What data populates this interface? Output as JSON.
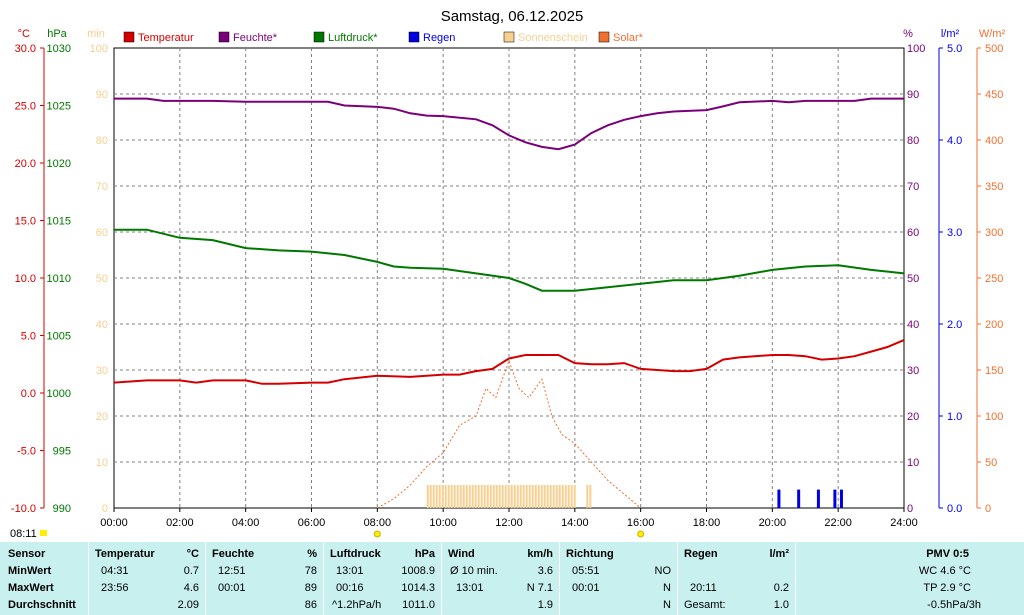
{
  "chart_data": {
    "type": "line",
    "title": "Samstag, 06.12.2025",
    "x_ticks": [
      "00:00",
      "02:00",
      "04:00",
      "06:00",
      "08:00",
      "10:00",
      "12:00",
      "14:00",
      "16:00",
      "18:00",
      "20:00",
      "22:00",
      "24:00"
    ],
    "x_range_hours": [
      0,
      24
    ],
    "grid": true,
    "legend": [
      {
        "label": "Temperatur",
        "color": "#d40000"
      },
      {
        "label": "Feuchte*",
        "color": "#7a007a"
      },
      {
        "label": "Luftdruck*",
        "color": "#007800"
      },
      {
        "label": "Regen",
        "color": "#0000e0"
      },
      {
        "label": "Sonnenschein",
        "color": "#f5d090"
      },
      {
        "label": "Solar*",
        "color": "#f07030"
      }
    ],
    "axes": {
      "temp": {
        "unit": "°C",
        "min": -10,
        "max": 30,
        "ticks": [
          "30.0",
          "25.0",
          "20.0",
          "15.0",
          "10.0",
          "5.0",
          "0.0",
          "-5.0",
          "-10.0"
        ],
        "color": "#d40000"
      },
      "press": {
        "unit": "hPa",
        "min": 990,
        "max": 1030,
        "ticks": [
          "1030",
          "1025",
          "1020",
          "1015",
          "1010",
          "1005",
          "1000",
          "995",
          "990"
        ],
        "color": "#007800"
      },
      "sun": {
        "unit": "min",
        "min": 0,
        "max": 100,
        "ticks": [
          "100",
          "90",
          "80",
          "70",
          "60",
          "50",
          "40",
          "30",
          "20",
          "10",
          "0"
        ],
        "color": "#f5d090"
      },
      "hum": {
        "unit": "%",
        "min": 0,
        "max": 100,
        "ticks": [
          "100",
          "90",
          "80",
          "70",
          "60",
          "50",
          "40",
          "30",
          "20",
          "10",
          "0"
        ],
        "color": "#7a007a"
      },
      "rain": {
        "unit": "l/m²",
        "min": 0,
        "max": 5,
        "ticks": [
          "5.0",
          "4.0",
          "3.0",
          "2.0",
          "1.0",
          "0.0"
        ],
        "color": "#0000e0"
      },
      "solar": {
        "unit": "W/m²",
        "min": 0,
        "max": 500,
        "ticks": [
          "500",
          "450",
          "400",
          "350",
          "300",
          "250",
          "200",
          "150",
          "100",
          "50",
          "0"
        ],
        "color": "#f07030"
      }
    },
    "series": [
      {
        "name": "Temperatur",
        "axis": "temp",
        "color": "#d40000",
        "x": [
          0,
          0.5,
          1,
          2,
          2.5,
          3,
          4,
          4.5,
          5,
          6,
          6.5,
          7,
          8,
          9,
          10,
          10.5,
          11,
          11.5,
          12,
          12.5,
          13,
          13.5,
          14,
          14.5,
          15,
          15.5,
          16,
          17,
          17.5,
          18,
          18.5,
          19,
          20,
          20.5,
          21,
          21.5,
          22,
          22.5,
          23,
          23.5,
          24
        ],
        "y": [
          0.9,
          1.0,
          1.1,
          1.1,
          0.9,
          1.1,
          1.1,
          0.8,
          0.8,
          0.9,
          0.9,
          1.2,
          1.5,
          1.4,
          1.6,
          1.6,
          1.9,
          2.1,
          3.0,
          3.3,
          3.3,
          3.3,
          2.6,
          2.5,
          2.5,
          2.6,
          2.1,
          1.9,
          1.9,
          2.1,
          2.9,
          3.1,
          3.3,
          3.3,
          3.2,
          2.9,
          3.0,
          3.2,
          3.6,
          4.0,
          4.6
        ]
      },
      {
        "name": "Feuchte*",
        "axis": "hum",
        "color": "#7a007a",
        "x": [
          0,
          1,
          1.5,
          2,
          3,
          4,
          5,
          6,
          6.5,
          7,
          8,
          8.5,
          9,
          9.5,
          10,
          11,
          11.5,
          12,
          12.5,
          13,
          13.5,
          14,
          14.5,
          15,
          15.5,
          16,
          16.5,
          17,
          18,
          18.5,
          19,
          20,
          20.5,
          21,
          22,
          22.5,
          23,
          24
        ],
        "y": [
          89,
          89,
          88.5,
          88.5,
          88.5,
          88.3,
          88.3,
          88.3,
          88.3,
          87.5,
          87.2,
          86.8,
          85.8,
          85.3,
          85.2,
          84.5,
          83.2,
          81,
          79.5,
          78.5,
          78,
          79,
          81.5,
          83.2,
          84.4,
          85.2,
          85.8,
          86.2,
          86.5,
          87.3,
          88.2,
          88.5,
          88.2,
          88.5,
          88.5,
          88.5,
          89,
          89
        ]
      },
      {
        "name": "Luftdruck*",
        "axis": "press",
        "color": "#007800",
        "x": [
          0,
          1,
          2,
          3,
          4,
          5,
          6,
          7,
          8,
          8.5,
          9,
          10,
          11,
          12,
          12.5,
          13,
          14,
          15,
          16,
          17,
          18,
          19,
          20,
          21,
          22,
          23,
          24
        ],
        "y": [
          1014.2,
          1014.2,
          1013.5,
          1013.3,
          1012.6,
          1012.4,
          1012.3,
          1012.0,
          1011.4,
          1011.0,
          1010.9,
          1010.8,
          1010.4,
          1010.0,
          1009.5,
          1008.9,
          1008.9,
          1009.2,
          1009.5,
          1009.8,
          1009.8,
          1010.2,
          1010.7,
          1011.0,
          1011.1,
          1010.7,
          1010.4
        ]
      },
      {
        "name": "Solar*",
        "axis": "solar",
        "color": "#f07030",
        "dashed": true,
        "x": [
          8,
          8.5,
          9,
          9.5,
          10,
          10.5,
          11,
          11.3,
          11.6,
          12,
          12.3,
          12.6,
          13,
          13.3,
          13.6,
          14,
          14.5,
          15,
          15.5,
          16
        ],
        "y": [
          0,
          10,
          25,
          45,
          60,
          90,
          100,
          130,
          120,
          160,
          130,
          120,
          140,
          100,
          80,
          70,
          50,
          30,
          15,
          0
        ]
      },
      {
        "name": "Regen",
        "axis": "rain",
        "type": "bar",
        "color": "#0000e0",
        "x": [
          20.2,
          20.8,
          21.4,
          21.9,
          22.1
        ],
        "y": [
          0.2,
          0.2,
          0.2,
          0.2,
          0.2
        ]
      },
      {
        "name": "Sonnenschein",
        "axis": "sun",
        "type": "band",
        "color": "#f5d090",
        "ranges": [
          [
            9.5,
            14.0
          ],
          [
            14.35,
            14.5
          ]
        ],
        "value": 5
      }
    ],
    "corner_label": "08:11"
  },
  "stats": {
    "sensor": {
      "header": "Sensor",
      "labels": [
        "MinWert",
        "MaxWert",
        "Durchschnitt"
      ]
    },
    "temperatur": {
      "header": "Temperatur",
      "unit": "°C",
      "rows": [
        [
          "04:31",
          "0.7"
        ],
        [
          "23:56",
          "4.6"
        ],
        [
          "",
          "2.09"
        ]
      ]
    },
    "feuchte": {
      "header": "Feuchte",
      "unit": "%",
      "rows": [
        [
          "12:51",
          "78"
        ],
        [
          "00:01",
          "89"
        ],
        [
          "",
          "86"
        ]
      ]
    },
    "luftdruck": {
      "header": "Luftdruck",
      "unit": "hPa",
      "rows": [
        [
          "13:01",
          "1008.9"
        ],
        [
          "00:16",
          "1014.3"
        ],
        [
          "^1.2hPa/h",
          "1011.0"
        ]
      ]
    },
    "wind": {
      "header": "Wind",
      "unit": "km/h",
      "rows": [
        [
          "Ø 10 min.",
          "3.6"
        ],
        [
          "13:01",
          "N 7.1"
        ],
        [
          "",
          "1.9"
        ]
      ]
    },
    "richtung": {
      "header": "Richtung",
      "rows": [
        [
          "05:51",
          "NO"
        ],
        [
          "00:01",
          "N"
        ],
        [
          "",
          "N"
        ]
      ]
    },
    "regen": {
      "header": "Regen",
      "unit": "l/m²",
      "rows": [
        [
          "",
          ""
        ],
        [
          "20:11",
          "0.2"
        ],
        [
          "Gesamt:",
          "1.0"
        ]
      ]
    },
    "pmv": {
      "header": "PMV 0:5",
      "rows": [
        "WC 4.6 °C",
        "TP 2.9 °C",
        "-0.5hPa/3h"
      ]
    }
  }
}
